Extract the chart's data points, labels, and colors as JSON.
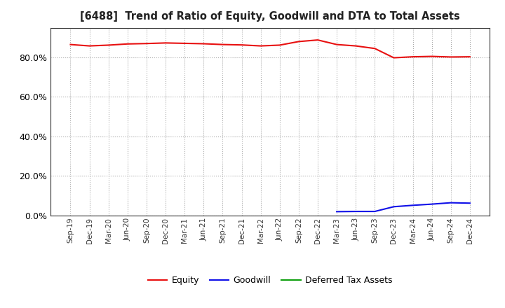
{
  "title": "[6488]  Trend of Ratio of Equity, Goodwill and DTA to Total Assets",
  "x_labels": [
    "Sep-19",
    "Dec-19",
    "Mar-20",
    "Jun-20",
    "Sep-20",
    "Dec-20",
    "Mar-21",
    "Jun-21",
    "Sep-21",
    "Dec-21",
    "Mar-22",
    "Jun-22",
    "Sep-22",
    "Dec-22",
    "Mar-23",
    "Jun-23",
    "Sep-23",
    "Dec-23",
    "Mar-24",
    "Jun-24",
    "Sep-24",
    "Dec-24"
  ],
  "equity": [
    86.5,
    85.8,
    86.2,
    86.8,
    87.0,
    87.3,
    87.1,
    86.9,
    86.5,
    86.3,
    85.8,
    86.2,
    88.0,
    88.8,
    86.5,
    85.8,
    84.5,
    79.8,
    80.3,
    80.5,
    80.2,
    80.3
  ],
  "goodwill": [
    null,
    null,
    null,
    null,
    null,
    null,
    null,
    null,
    null,
    null,
    null,
    null,
    null,
    null,
    2.0,
    2.1,
    2.1,
    4.5,
    5.2,
    5.8,
    6.5,
    6.3
  ],
  "dta": [
    null,
    null,
    null,
    null,
    null,
    null,
    null,
    null,
    null,
    null,
    null,
    null,
    null,
    null,
    null,
    null,
    null,
    null,
    null,
    null,
    null,
    null
  ],
  "equity_color": "#e81010",
  "goodwill_color": "#1010e8",
  "dta_color": "#10a010",
  "background_color": "#ffffff",
  "grid_color": "#aaaaaa",
  "ylim": [
    0,
    95
  ],
  "yticks": [
    0,
    20,
    40,
    60,
    80
  ],
  "legend_labels": [
    "Equity",
    "Goodwill",
    "Deferred Tax Assets"
  ]
}
